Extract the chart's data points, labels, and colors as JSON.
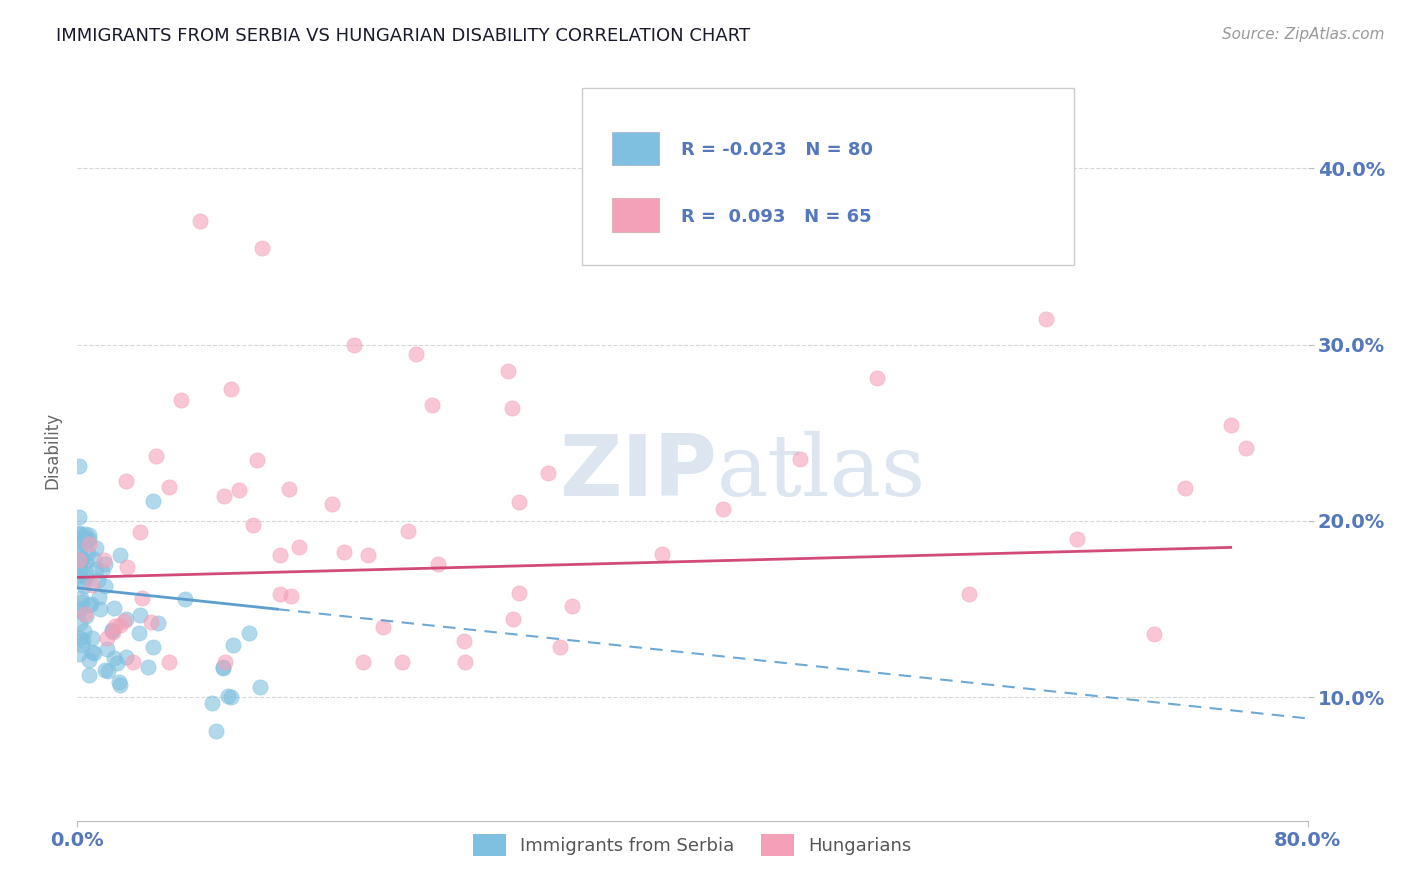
{
  "title": "IMMIGRANTS FROM SERBIA VS HUNGARIAN DISABILITY CORRELATION CHART",
  "source": "Source: ZipAtlas.com",
  "ylabel": "Disability",
  "legend_label1": "Immigrants from Serbia",
  "legend_label2": "Hungarians",
  "r1": -0.023,
  "n1": 80,
  "r2": 0.093,
  "n2": 65,
  "color1": "#7fbfdf",
  "color2": "#f4a0b8",
  "line1_color": "#5599cc",
  "line2_color": "#d04070",
  "title_color": "#1a1a2e",
  "axis_color": "#5577bb",
  "source_color": "#999999",
  "background_color": "#ffffff",
  "watermark_color": "#dde5f0",
  "ytick_labels": [
    "10.0%",
    "20.0%",
    "30.0%",
    "40.0%"
  ],
  "ytick_values": [
    0.1,
    0.2,
    0.3,
    0.4
  ],
  "xlim": [
    0.0,
    0.8
  ],
  "ylim": [
    0.03,
    0.45
  ]
}
